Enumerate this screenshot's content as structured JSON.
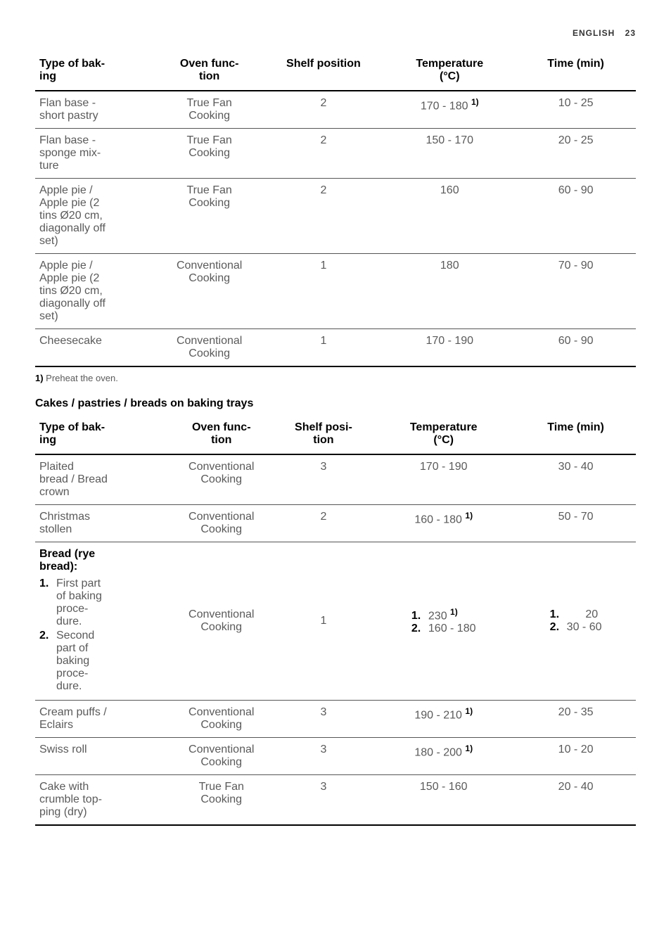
{
  "header": {
    "lang": "ENGLISH",
    "page": "23"
  },
  "table1": {
    "columns": [
      "Type of bak-\ning",
      "Oven func-\ntion",
      "Shelf position",
      "Temperature\n(°C)",
      "Time (min)"
    ],
    "rows": [
      {
        "type": "Flan base -\nshort pastry",
        "func": "True Fan\nCooking",
        "shelf": "2",
        "temp": "170 - 180",
        "temp_sup": "1)",
        "time": "10 - 25"
      },
      {
        "type": "Flan base -\nsponge mix-\nture",
        "func": "True Fan\nCooking",
        "shelf": "2",
        "temp": "150 - 170",
        "time": "20 - 25"
      },
      {
        "type": "Apple pie /\nApple pie (2\ntins Ø20 cm,\ndiagonally off\nset)",
        "func": "True Fan\nCooking",
        "shelf": "2",
        "temp": "160",
        "time": "60 - 90"
      },
      {
        "type": "Apple pie /\nApple pie (2\ntins Ø20 cm,\ndiagonally off\nset)",
        "func": "Conventional\nCooking",
        "shelf": "1",
        "temp": "180",
        "time": "70 - 90"
      },
      {
        "type": "Cheesecake",
        "func": "Conventional\nCooking",
        "shelf": "1",
        "temp": "170 - 190",
        "time": "60 - 90"
      }
    ]
  },
  "footnote1": {
    "marker": "1)",
    "text": " Preheat the oven."
  },
  "section2_heading": "Cakes / pastries / breads on baking trays",
  "table2": {
    "columns": [
      "Type of bak-\ning",
      "Oven func-\ntion",
      "Shelf posi-\ntion",
      "Temperature\n(°C)",
      "Time (min)"
    ],
    "rows": [
      {
        "type": "Plaited\nbread / Bread\ncrown",
        "func": "Conventional\nCooking",
        "shelf": "3",
        "temp": "170 - 190",
        "time": "30 - 40"
      },
      {
        "type": "Christmas\nstollen",
        "func": "Conventional\nCooking",
        "shelf": "2",
        "temp": "160 - 180",
        "temp_sup": "1)",
        "time": "50 - 70"
      },
      {
        "bread": {
          "title": "Bread (rye\nbread):",
          "steps": [
            {
              "n": "1.",
              "text": "First part\nof baking\nproce-\ndure."
            },
            {
              "n": "2.",
              "text": "Second\npart of\nbaking\nproce-\ndure."
            }
          ]
        },
        "func": "Conventional\nCooking",
        "shelf": "1",
        "temp_list": [
          {
            "n": "1.",
            "v": "230",
            "sup": "1)"
          },
          {
            "n": "2.",
            "v": "160 - 180"
          }
        ],
        "time_list": [
          {
            "n": "1.",
            "v": "20"
          },
          {
            "n": "2.",
            "v": "30 - 60"
          }
        ]
      },
      {
        "type": "Cream puffs /\nEclairs",
        "func": "Conventional\nCooking",
        "shelf": "3",
        "temp": "190 - 210",
        "temp_sup": "1)",
        "time": "20 - 35"
      },
      {
        "type": "Swiss roll",
        "func": "Conventional\nCooking",
        "shelf": "3",
        "temp": "180 - 200",
        "temp_sup": "1)",
        "time": "10 - 20"
      },
      {
        "type": "Cake with\ncrumble top-\nping (dry)",
        "func": "True Fan\nCooking",
        "shelf": "3",
        "temp": "150 - 160",
        "time": "20 - 40"
      }
    ]
  }
}
